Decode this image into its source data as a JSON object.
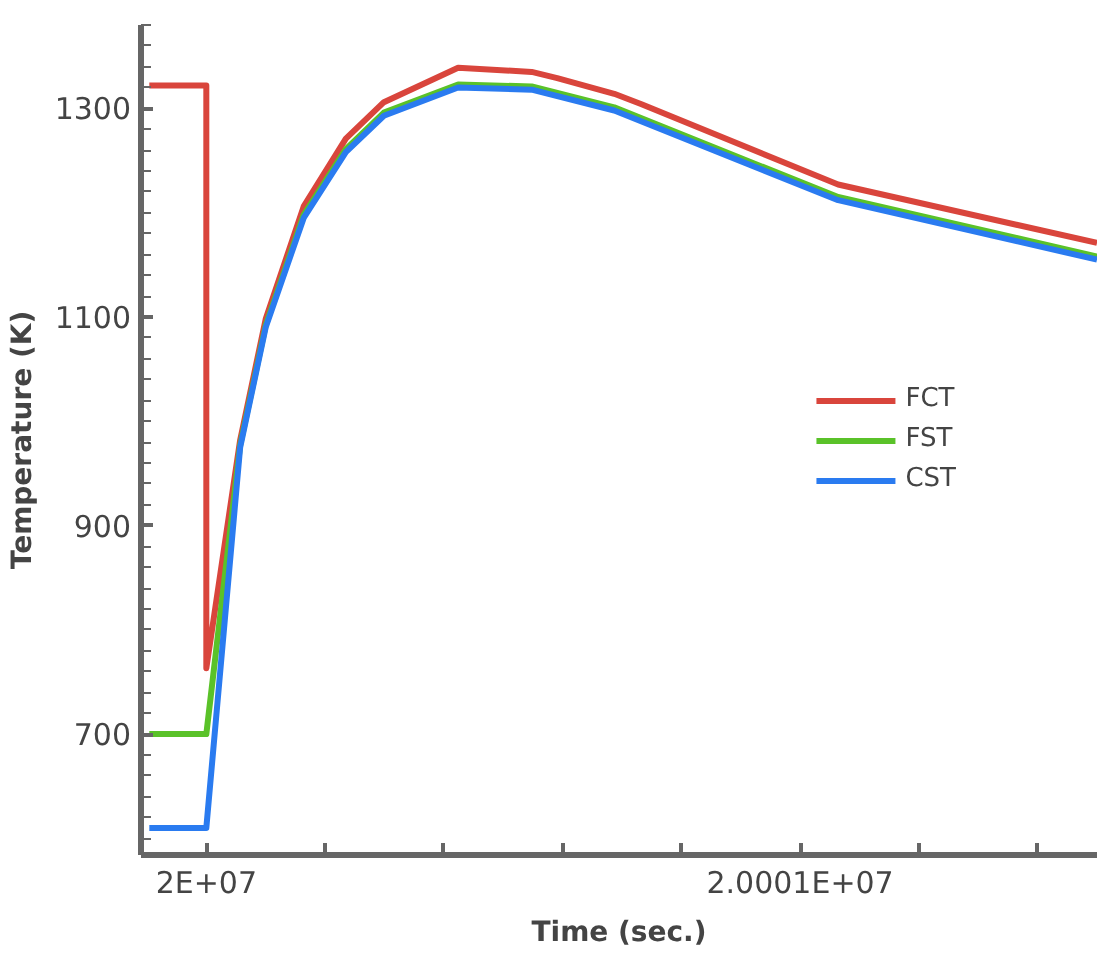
{
  "chart_data": {
    "type": "line",
    "xlabel": "Time (sec.)",
    "ylabel": "Temperature (K)",
    "xlim": [
      19999890,
      20001500
    ],
    "ylim": [
      584,
      1380
    ],
    "xticks": [
      {
        "value": 20000000,
        "label": "2E+07"
      },
      {
        "value": 20000200,
        "label": null
      },
      {
        "value": 20000400,
        "label": null
      },
      {
        "value": 20000600,
        "label": null
      },
      {
        "value": 20000800,
        "label": null
      },
      {
        "value": 20001000,
        "label": "2.0001E+07"
      },
      {
        "value": 20001200,
        "label": null
      },
      {
        "value": 20001400,
        "label": null
      }
    ],
    "yticks": [
      700,
      900,
      1100,
      1300
    ],
    "grid": false,
    "legend": "right",
    "marker": "none",
    "line_style": "solid",
    "series": [
      {
        "name": "FCT",
        "color": "#d9453c",
        "x": [
          19999904,
          20000000,
          20000000,
          20000057,
          20000100,
          20000164,
          20000235,
          20000299,
          20000424,
          20000548,
          20000591,
          20000687,
          20000733,
          20001064,
          20001500
        ],
        "values": [
          1322,
          1322,
          763,
          982,
          1098,
          1206,
          1271,
          1306,
          1339,
          1335,
          1329,
          1314,
          1304,
          1227,
          1171
        ]
      },
      {
        "name": "FST",
        "color": "#5ac229",
        "x": [
          19999904,
          20000000,
          20000000,
          20000057,
          20000100,
          20000164,
          20000235,
          20000299,
          20000424,
          20000548,
          20000687,
          20001064,
          20001500
        ],
        "values": [
          700,
          700,
          700,
          977,
          1092,
          1198,
          1261,
          1296,
          1323,
          1321,
          1301,
          1215,
          1158
        ]
      },
      {
        "name": "CST",
        "color": "#2a7bf0",
        "x": [
          19999904,
          20000000,
          20000000,
          20000057,
          20000100,
          20000164,
          20000235,
          20000299,
          20000424,
          20000548,
          20000687,
          20001064,
          20001500
        ],
        "values": [
          610,
          610,
          610,
          975,
          1090,
          1195,
          1258,
          1293,
          1320,
          1318,
          1298,
          1212,
          1155
        ]
      }
    ]
  }
}
